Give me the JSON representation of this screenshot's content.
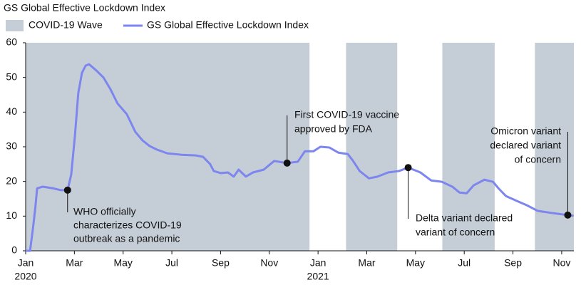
{
  "chart_data": {
    "type": "line",
    "title": "GS Global Effective Lockdown Index",
    "waves": {
      "name": "COVID-19 Wave",
      "color": "#c5ced7",
      "spans": [
        [
          0,
          11.65
        ],
        [
          13.15,
          15.25
        ],
        [
          17.1,
          19.25
        ],
        [
          20.9,
          22.5
        ]
      ]
    },
    "x": [
      0,
      0.18,
      0.3,
      0.4,
      0.47,
      0.7,
      1.14,
      1.43,
      1.72,
      1.87,
      2.02,
      2.16,
      2.31,
      2.46,
      2.6,
      2.9,
      3.19,
      3.48,
      3.77,
      4.15,
      4.5,
      4.8,
      5.09,
      5.38,
      5.82,
      6.4,
      6.99,
      7.28,
      7.57,
      7.72,
      8.01,
      8.3,
      8.54,
      8.74,
      9.04,
      9.33,
      9.77,
      10.2,
      10.73,
      11.17,
      11.46,
      11.81,
      12.1,
      12.46,
      12.84,
      13.22,
      13.42,
      13.71,
      14.09,
      14.44,
      14.88,
      15.32,
      15.7,
      16.2,
      16.64,
      17.08,
      17.51,
      17.81,
      18.1,
      18.39,
      18.83,
      19.18,
      19.42,
      19.71,
      20.15,
      20.58,
      21.02,
      21.6,
      22.25,
      22.49
    ],
    "series": [
      {
        "name": "GS Global Effective Lockdown Index",
        "color": "#7d85ee",
        "values": [
          0,
          0,
          6.5,
          12.7,
          18,
          18.5,
          18,
          17.5,
          17.5,
          22,
          33,
          45.5,
          51.3,
          53.4,
          53.8,
          52,
          50,
          46.6,
          42.5,
          39.4,
          34.3,
          31.8,
          30.2,
          29.2,
          28.1,
          27.7,
          27.5,
          27.1,
          25,
          23,
          22.4,
          22.6,
          21.4,
          23.4,
          21.4,
          22.6,
          23.4,
          25.9,
          25.3,
          25.7,
          28.7,
          28.7,
          30,
          29.8,
          28.3,
          27.9,
          26.1,
          23,
          20.9,
          21.4,
          22.6,
          23,
          24,
          22.6,
          20.3,
          19.9,
          18.5,
          16.8,
          16.6,
          18.9,
          20.5,
          19.9,
          17.9,
          15.8,
          14.4,
          13.1,
          11.5,
          10.9,
          10.3,
          10.1
        ]
      }
    ],
    "xlim": [
      0,
      22.5
    ],
    "xticks": [
      {
        "value": 0,
        "label": "Jan"
      },
      {
        "value": 2,
        "label": "Mar"
      },
      {
        "value": 4,
        "label": "May"
      },
      {
        "value": 6,
        "label": "Jul"
      },
      {
        "value": 8,
        "label": "Sep"
      },
      {
        "value": 10,
        "label": "Nov"
      },
      {
        "value": 12,
        "label": "Jan"
      },
      {
        "value": 14,
        "label": "Mar"
      },
      {
        "value": 16,
        "label": "May"
      },
      {
        "value": 18,
        "label": "Jul"
      },
      {
        "value": 20,
        "label": "Sep"
      },
      {
        "value": 22,
        "label": "Nov"
      }
    ],
    "year_labels": [
      {
        "value": 0,
        "label": "2020"
      },
      {
        "value": 12,
        "label": "2021"
      }
    ],
    "ylim": [
      0,
      60
    ],
    "yticks": [
      0,
      10,
      20,
      30,
      40,
      50,
      60
    ],
    "annotations": [
      {
        "x": 1.72,
        "y": 17.5,
        "text": [
          "WHO officially",
          "characterizes COVID-19",
          "outbreak as a pandemic"
        ]
      },
      {
        "x": 10.73,
        "y": 25.3,
        "text": [
          "First COVID-19 vaccine",
          "approved by FDA"
        ]
      },
      {
        "x": 15.7,
        "y": 24,
        "text": [
          "Delta variant declared",
          "variant of concern"
        ]
      },
      {
        "x": 22.25,
        "y": 10.3,
        "text": [
          "Omicron variant",
          "declared variant",
          "of concern"
        ]
      }
    ]
  }
}
